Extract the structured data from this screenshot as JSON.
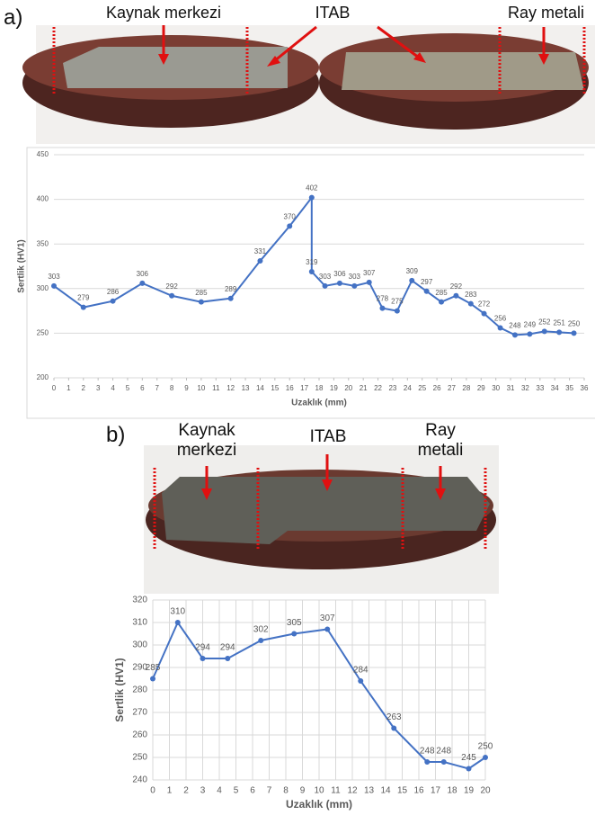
{
  "panels": [
    {
      "label": "a)",
      "annotations": [
        "Kaynak merkezi",
        "ITAB",
        "Ray metali"
      ]
    },
    {
      "label": "b)",
      "annotations": [
        "Kaynak merkezi",
        "ITAB",
        "Ray metali"
      ]
    }
  ],
  "chart_data": [
    {
      "type": "line",
      "xlabel": "Uzaklık (mm)",
      "ylabel": "Sertlik (HV1)",
      "x": [
        0,
        2,
        4,
        6,
        8,
        10,
        12,
        14,
        16,
        17.5,
        17.5,
        18.4,
        19.4,
        20.4,
        21.4,
        22.3,
        23.3,
        24.3,
        25.3,
        26.3,
        27.3,
        28.3,
        29.2,
        30.3,
        31.3,
        32.3,
        33.3,
        34.3,
        35.3
      ],
      "series": [
        {
          "color": "#4472c4",
          "values": [
            303,
            279,
            286,
            306,
            292,
            285,
            289,
            331,
            370,
            402,
            319,
            303,
            306,
            303,
            307,
            278,
            275,
            309,
            297,
            285,
            292,
            283,
            272,
            256,
            248,
            249,
            252,
            251,
            250
          ]
        }
      ],
      "xlim": [
        0,
        36
      ],
      "xticks": [
        0,
        1,
        2,
        3,
        4,
        5,
        6,
        7,
        8,
        9,
        10,
        11,
        12,
        13,
        14,
        15,
        16,
        17,
        18,
        19,
        20,
        21,
        22,
        23,
        24,
        25,
        26,
        27,
        28,
        29,
        30,
        31,
        32,
        33,
        34,
        35,
        36
      ],
      "ylim": [
        200,
        450
      ],
      "yticks": [
        200,
        250,
        300,
        350,
        400,
        450
      ],
      "grid": "y"
    },
    {
      "type": "line",
      "xlabel": "Uzaklık (mm)",
      "ylabel": "Sertlik (HV1)",
      "x": [
        0,
        1.5,
        3,
        4.5,
        6.5,
        8.5,
        10.5,
        12.5,
        14.5,
        16.5,
        17.5,
        19,
        20
      ],
      "series": [
        {
          "color": "#4472c4",
          "values": [
            285,
            310,
            294,
            294,
            302,
            305,
            307,
            284,
            263,
            248,
            248,
            245,
            250
          ]
        }
      ],
      "xlim": [
        0,
        20
      ],
      "xticks": [
        0,
        1,
        2,
        3,
        4,
        5,
        6,
        7,
        8,
        9,
        10,
        11,
        12,
        13,
        14,
        15,
        16,
        17,
        18,
        19,
        20
      ],
      "ylim": [
        240,
        320
      ],
      "yticks": [
        240,
        250,
        260,
        270,
        280,
        290,
        300,
        310,
        320
      ],
      "grid": "both"
    }
  ]
}
